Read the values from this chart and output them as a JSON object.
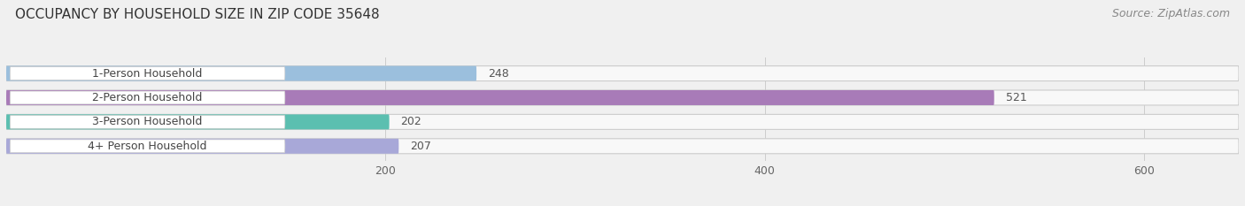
{
  "title": "OCCUPANCY BY HOUSEHOLD SIZE IN ZIP CODE 35648",
  "source": "Source: ZipAtlas.com",
  "categories": [
    "1-Person Household",
    "2-Person Household",
    "3-Person Household",
    "4+ Person Household"
  ],
  "values": [
    248,
    521,
    202,
    207
  ],
  "bar_colors": [
    "#9BBFDD",
    "#A87BB8",
    "#5BBFB0",
    "#A8A8D8"
  ],
  "background_color": "#f0f0f0",
  "bar_bg_color": "#e8e8e8",
  "data_max": 650,
  "xlim": [
    0,
    650
  ],
  "xticks": [
    200,
    400,
    600
  ],
  "title_fontsize": 11,
  "source_fontsize": 9,
  "label_fontsize": 9,
  "value_fontsize": 9,
  "tick_fontsize": 9
}
